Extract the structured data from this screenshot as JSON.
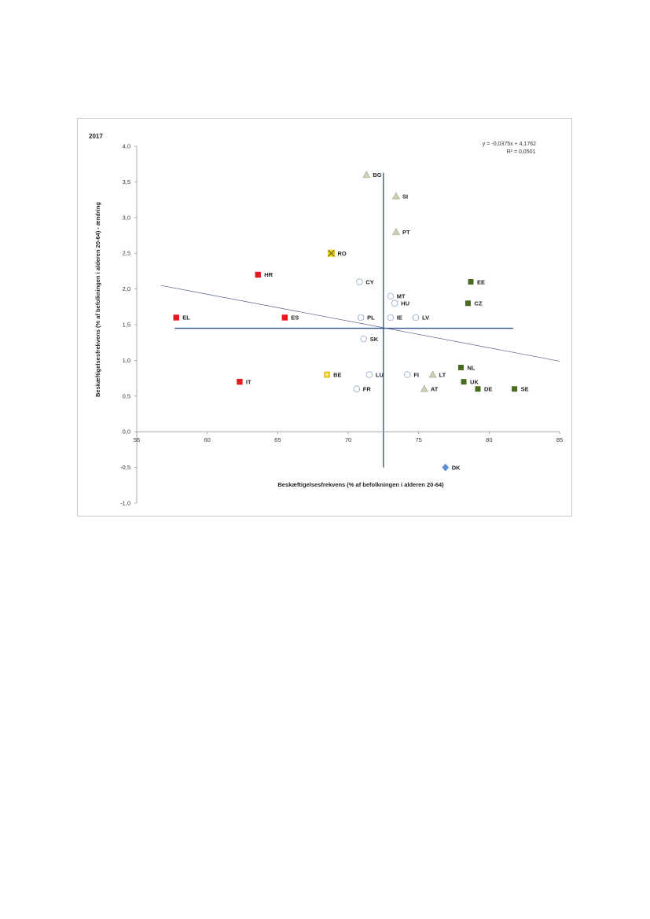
{
  "chart_data": {
    "type": "scatter",
    "title": "2017",
    "xlabel": "Beskæftigelsesfrekvens (% af befolkningen i alderen 20-64)",
    "ylabel": "Beskæftigelsesfrekvens (% af befolkningen i alderen 20-64) - ændring",
    "xlim": [
      55,
      85
    ],
    "ylim": [
      -1.0,
      4.0
    ],
    "x_ticks": [
      "55",
      "60",
      "65",
      "70",
      "75",
      "80",
      "85"
    ],
    "y_ticks": [
      "4,0",
      "3,5",
      "3,0",
      "2,5",
      "2,0",
      "1,5",
      "1,0",
      "0,5",
      "0,0",
      "-0,5",
      "-1,0"
    ],
    "grid": false,
    "regression": {
      "equation": "y = -0,0375x + 4,1762",
      "r2": "R² = 0,0501",
      "slope": -0.0375,
      "intercept": 4.1762,
      "x_range": [
        56.7,
        85
      ]
    },
    "reference_lines": {
      "x": 72.5,
      "y": 1.45
    },
    "colors": {
      "red": "#e31a1c",
      "yellow": "#f2cf1d",
      "blue": "#5b8fd6",
      "green": "#4a6b22",
      "triangle": "#cdd1b6",
      "circle": "#ffffff",
      "axis": "#2f4f8f"
    },
    "points": [
      {
        "label": "BG",
        "x": 71.3,
        "y": 3.6,
        "marker": "triangle"
      },
      {
        "label": "SI",
        "x": 73.4,
        "y": 3.3,
        "marker": "triangle"
      },
      {
        "label": "PT",
        "x": 73.4,
        "y": 2.8,
        "marker": "triangle"
      },
      {
        "label": "RO",
        "x": 68.8,
        "y": 2.5,
        "marker": "x-square"
      },
      {
        "label": "HR",
        "x": 63.6,
        "y": 2.2,
        "marker": "square-red"
      },
      {
        "label": "CY",
        "x": 70.8,
        "y": 2.1,
        "marker": "circle"
      },
      {
        "label": "EE",
        "x": 78.7,
        "y": 2.1,
        "marker": "square-green"
      },
      {
        "label": "MT",
        "x": 73.0,
        "y": 1.9,
        "marker": "circle"
      },
      {
        "label": "HU",
        "x": 73.3,
        "y": 1.8,
        "marker": "circle"
      },
      {
        "label": "CZ",
        "x": 78.5,
        "y": 1.8,
        "marker": "square-green"
      },
      {
        "label": "EL",
        "x": 57.8,
        "y": 1.6,
        "marker": "square-red"
      },
      {
        "label": "ES",
        "x": 65.5,
        "y": 1.6,
        "marker": "square-red"
      },
      {
        "label": "PL",
        "x": 70.9,
        "y": 1.6,
        "marker": "circle"
      },
      {
        "label": "IE",
        "x": 73.0,
        "y": 1.6,
        "marker": "circle"
      },
      {
        "label": "LV",
        "x": 74.8,
        "y": 1.6,
        "marker": "circle"
      },
      {
        "label": "SK",
        "x": 71.1,
        "y": 1.3,
        "marker": "circle"
      },
      {
        "label": "NL",
        "x": 78.0,
        "y": 0.9,
        "marker": "square-green"
      },
      {
        "label": "BE",
        "x": 68.5,
        "y": 0.8,
        "marker": "square-yellow"
      },
      {
        "label": "LU",
        "x": 71.5,
        "y": 0.8,
        "marker": "circle"
      },
      {
        "label": "FI",
        "x": 74.2,
        "y": 0.8,
        "marker": "circle"
      },
      {
        "label": "LT",
        "x": 76.0,
        "y": 0.8,
        "marker": "triangle"
      },
      {
        "label": "IT",
        "x": 62.3,
        "y": 0.7,
        "marker": "square-red"
      },
      {
        "label": "UK",
        "x": 78.2,
        "y": 0.7,
        "marker": "square-green"
      },
      {
        "label": "FR",
        "x": 70.6,
        "y": 0.6,
        "marker": "circle"
      },
      {
        "label": "AT",
        "x": 75.4,
        "y": 0.6,
        "marker": "triangle"
      },
      {
        "label": "DE",
        "x": 79.2,
        "y": 0.6,
        "marker": "square-green"
      },
      {
        "label": "SE",
        "x": 81.8,
        "y": 0.6,
        "marker": "square-green"
      },
      {
        "label": "DK",
        "x": 76.9,
        "y": -0.5,
        "marker": "diamond"
      }
    ]
  }
}
